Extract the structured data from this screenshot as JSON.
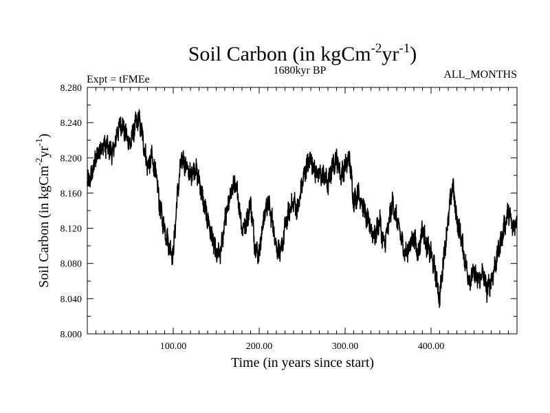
{
  "chart_data": {
    "type": "line",
    "title": "Soil Carbon (in kgCm",
    "title_sup1": "-2",
    "title_mid": "yr",
    "title_sup2": "-1",
    "title_end": ")",
    "subtitle": "1680kyr BP",
    "experiment": "Expt = tFMEe",
    "period": "ALL_MONTHS",
    "xlabel": "Time (in years since start)",
    "ylabel_main": "Soil Carbon (in kgCm",
    "ylabel_sup1": "-2",
    "ylabel_mid": "yr",
    "ylabel_sup2": "-1",
    "ylabel_end": ")",
    "xlim": [
      0,
      500
    ],
    "ylim": [
      8.0,
      8.28
    ],
    "xticks": [
      100,
      200,
      300,
      400
    ],
    "xtick_labels": [
      "100.00",
      "200.00",
      "300.00",
      "400.00"
    ],
    "yticks": [
      8.0,
      8.04,
      8.08,
      8.12,
      8.16,
      8.2,
      8.24,
      8.28
    ],
    "ytick_labels": [
      "8.000",
      "8.040",
      "8.080",
      "8.120",
      "8.160",
      "8.200",
      "8.240",
      "8.280"
    ],
    "series": [
      {
        "name": "Soil Carbon",
        "x": [
          0,
          5,
          10,
          15,
          20,
          25,
          30,
          35,
          40,
          45,
          50,
          55,
          60,
          65,
          70,
          75,
          80,
          85,
          90,
          95,
          100,
          105,
          110,
          115,
          120,
          125,
          130,
          135,
          140,
          145,
          150,
          155,
          160,
          165,
          170,
          175,
          180,
          185,
          190,
          195,
          200,
          205,
          210,
          215,
          220,
          225,
          230,
          235,
          240,
          245,
          250,
          255,
          260,
          265,
          270,
          275,
          280,
          285,
          290,
          295,
          300,
          305,
          310,
          315,
          320,
          325,
          330,
          335,
          340,
          345,
          350,
          355,
          360,
          365,
          370,
          375,
          380,
          385,
          390,
          395,
          400,
          405,
          410,
          415,
          420,
          425,
          430,
          435,
          440,
          445,
          450,
          455,
          460,
          465,
          470,
          475,
          480,
          485,
          490,
          495,
          500
        ],
        "values": [
          8.17,
          8.18,
          8.2,
          8.21,
          8.215,
          8.21,
          8.205,
          8.23,
          8.24,
          8.225,
          8.215,
          8.235,
          8.245,
          8.22,
          8.19,
          8.2,
          8.18,
          8.14,
          8.12,
          8.1,
          8.09,
          8.16,
          8.2,
          8.19,
          8.18,
          8.19,
          8.175,
          8.15,
          8.13,
          8.11,
          8.09,
          8.09,
          8.13,
          8.15,
          8.17,
          8.16,
          8.12,
          8.125,
          8.15,
          8.1,
          8.09,
          8.13,
          8.15,
          8.13,
          8.1,
          8.09,
          8.12,
          8.14,
          8.15,
          8.14,
          8.17,
          8.19,
          8.2,
          8.185,
          8.18,
          8.18,
          8.17,
          8.19,
          8.2,
          8.18,
          8.19,
          8.2,
          8.15,
          8.16,
          8.15,
          8.13,
          8.12,
          8.11,
          8.13,
          8.1,
          8.12,
          8.15,
          8.13,
          8.11,
          8.09,
          8.1,
          8.11,
          8.09,
          8.12,
          8.1,
          8.09,
          8.07,
          8.04,
          8.09,
          8.13,
          8.17,
          8.13,
          8.11,
          8.08,
          8.06,
          8.07,
          8.06,
          8.07,
          8.05,
          8.06,
          8.08,
          8.1,
          8.12,
          8.14,
          8.12,
          8.13
        ]
      }
    ]
  }
}
